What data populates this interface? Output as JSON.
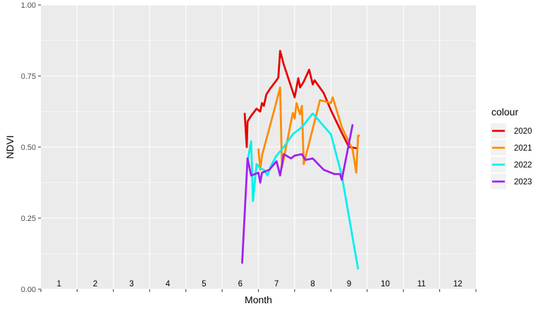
{
  "chart_data": {
    "type": "line",
    "title": "",
    "xlabel": "Month",
    "ylabel": "NDVI",
    "xlim": [
      0.5,
      12.5
    ],
    "ylim": [
      0,
      1
    ],
    "y_ticks": [
      0.0,
      0.25,
      0.5,
      0.75,
      1.0
    ],
    "y_tick_labels": [
      "0.00",
      "0.25",
      "0.50",
      "0.75",
      "1.00"
    ],
    "month_labels": [
      "1",
      "2",
      "3",
      "4",
      "5",
      "6",
      "7",
      "8",
      "9",
      "10",
      "11",
      "12"
    ],
    "grid": true,
    "legend": {
      "title": "colour",
      "position": "right"
    },
    "series": [
      {
        "name": "2020",
        "color": "#e60000",
        "points": [
          [
            6.12,
            0.62
          ],
          [
            6.18,
            0.5
          ],
          [
            6.2,
            0.59
          ],
          [
            6.3,
            0.61
          ],
          [
            6.45,
            0.635
          ],
          [
            6.55,
            0.625
          ],
          [
            6.6,
            0.655
          ],
          [
            6.65,
            0.645
          ],
          [
            6.72,
            0.685
          ],
          [
            6.82,
            0.705
          ],
          [
            7.0,
            0.735
          ],
          [
            7.05,
            0.745
          ],
          [
            7.1,
            0.838
          ],
          [
            7.2,
            0.79
          ],
          [
            7.5,
            0.675
          ],
          [
            7.6,
            0.742
          ],
          [
            7.65,
            0.71
          ],
          [
            7.75,
            0.73
          ],
          [
            7.9,
            0.772
          ],
          [
            8.0,
            0.72
          ],
          [
            8.05,
            0.735
          ],
          [
            8.3,
            0.69
          ],
          [
            8.5,
            0.63
          ],
          [
            8.8,
            0.55
          ],
          [
            9.0,
            0.5
          ],
          [
            9.25,
            0.495
          ]
        ]
      },
      {
        "name": "2021",
        "color": "#ff8c00",
        "points": [
          [
            6.5,
            0.495
          ],
          [
            6.55,
            0.42
          ],
          [
            6.6,
            0.47
          ],
          [
            7.0,
            0.66
          ],
          [
            7.1,
            0.71
          ],
          [
            7.15,
            0.43
          ],
          [
            7.2,
            0.46
          ],
          [
            7.45,
            0.62
          ],
          [
            7.5,
            0.6
          ],
          [
            7.55,
            0.655
          ],
          [
            7.65,
            0.615
          ],
          [
            7.7,
            0.645
          ],
          [
            7.75,
            0.44
          ],
          [
            8.2,
            0.665
          ],
          [
            8.5,
            0.655
          ],
          [
            8.55,
            0.675
          ],
          [
            8.8,
            0.57
          ],
          [
            9.1,
            0.49
          ],
          [
            9.2,
            0.41
          ],
          [
            9.25,
            0.54
          ],
          [
            9.3,
            0.54
          ]
        ]
      },
      {
        "name": "2022",
        "color": "#00f0f0",
        "points": [
          [
            6.2,
            0.45
          ],
          [
            6.3,
            0.52
          ],
          [
            6.35,
            0.31
          ],
          [
            6.45,
            0.44
          ],
          [
            6.55,
            0.425
          ],
          [
            6.65,
            0.42
          ],
          [
            6.75,
            0.4
          ],
          [
            6.85,
            0.435
          ],
          [
            7.0,
            0.47
          ],
          [
            7.2,
            0.5
          ],
          [
            7.45,
            0.545
          ],
          [
            7.7,
            0.57
          ],
          [
            8.0,
            0.618
          ],
          [
            8.5,
            0.545
          ],
          [
            8.8,
            0.4
          ],
          [
            9.25,
            0.07
          ]
        ]
      },
      {
        "name": "2023",
        "color": "#a020f0",
        "points": [
          [
            6.05,
            0.09
          ],
          [
            6.2,
            0.46
          ],
          [
            6.3,
            0.4
          ],
          [
            6.5,
            0.41
          ],
          [
            6.55,
            0.375
          ],
          [
            6.6,
            0.41
          ],
          [
            6.8,
            0.42
          ],
          [
            7.0,
            0.45
          ],
          [
            7.1,
            0.4
          ],
          [
            7.2,
            0.475
          ],
          [
            7.4,
            0.46
          ],
          [
            7.5,
            0.47
          ],
          [
            7.7,
            0.475
          ],
          [
            7.8,
            0.455
          ],
          [
            8.0,
            0.46
          ],
          [
            8.3,
            0.42
          ],
          [
            8.6,
            0.405
          ],
          [
            8.75,
            0.405
          ],
          [
            8.8,
            0.385
          ],
          [
            9.1,
            0.58
          ]
        ]
      }
    ]
  }
}
